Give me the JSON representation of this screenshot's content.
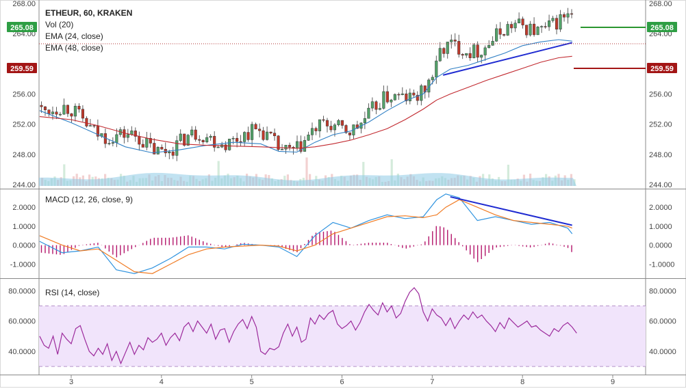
{
  "header": {
    "symbol": "ETHEUR, 60, KRAKEN",
    "vol": "Vol (20)",
    "ema24": "EMA (24, close)",
    "ema48": "EMA (48, close)"
  },
  "macd_title": "MACD (12, 26, close, 9)",
  "rsi_title": "RSI (14, close)",
  "price_badges": {
    "green": {
      "value": "265.08",
      "color": "#2e9e44"
    },
    "red": {
      "value": "259.59",
      "color": "#a31515"
    }
  },
  "colors": {
    "up": "#53a36a",
    "down": "#c0392b",
    "ema24": "#2f7fc4",
    "ema48": "#c1272d",
    "trend": "#1f2bd1",
    "macd": "#2f93df",
    "signal": "#f07b23",
    "histogram": "#b3146a",
    "rsi": "#9c2a9c",
    "rsi_band": "#f1e4fb",
    "volume": "#8ecae6"
  },
  "chart_data": [
    {
      "type": "candlestick",
      "title": "ETHEUR, 60, KRAKEN",
      "ylim": [
        244,
        268
      ],
      "y_ticks": [
        "268.00",
        "264.00",
        "256.00",
        "252.00",
        "248.00",
        "244.00"
      ],
      "x_ticks": [
        "3",
        "4",
        "5",
        "6",
        "7",
        "8",
        "9"
      ],
      "x_days": [
        2.65,
        8.6
      ],
      "series": [
        {
          "name": "EMA (24, close)",
          "x": [
            2.65,
            3.0,
            3.3,
            3.6,
            3.9,
            4.2,
            4.5,
            4.8,
            5.1,
            5.3,
            5.5,
            5.7,
            5.9,
            6.1,
            6.3,
            6.5,
            6.7,
            6.9,
            7.05,
            7.2,
            7.4,
            7.6,
            7.8,
            8.0,
            8.2,
            8.4,
            8.55
          ],
          "values": [
            253.8,
            252.2,
            250.6,
            249.0,
            248.2,
            248.6,
            249.2,
            249.6,
            249.4,
            248.4,
            248.3,
            249.6,
            250.6,
            251.1,
            252.3,
            253.8,
            255.1,
            256.0,
            258.2,
            259.3,
            259.8,
            260.6,
            261.4,
            262.4,
            262.9,
            263.2,
            263.0
          ]
        },
        {
          "name": "EMA (48, close)",
          "x": [
            2.65,
            3.0,
            3.3,
            3.6,
            3.9,
            4.2,
            4.5,
            4.8,
            5.1,
            5.3,
            5.5,
            5.7,
            5.9,
            6.1,
            6.3,
            6.5,
            6.7,
            6.9,
            7.05,
            7.2,
            7.4,
            7.6,
            7.8,
            8.0,
            8.2,
            8.4,
            8.55
          ],
          "values": [
            253.0,
            252.6,
            251.8,
            250.8,
            250.0,
            249.4,
            249.2,
            249.1,
            249.0,
            248.9,
            248.8,
            249.0,
            249.4,
            249.9,
            250.6,
            251.4,
            252.6,
            254.0,
            255.2,
            256.0,
            256.9,
            257.8,
            258.6,
            259.4,
            260.2,
            260.8,
            261.0
          ]
        }
      ],
      "trendlines": [
        {
          "x": [
            7.12,
            8.55
          ],
          "values": [
            258.5,
            262.8
          ]
        }
      ],
      "volume": {
        "label": "Vol (20)"
      },
      "badges": [
        "265.08",
        "259.59"
      ]
    },
    {
      "type": "line",
      "title": "MACD (12, 26, close, 9)",
      "ylim": [
        -1.6,
        2.8
      ],
      "y_ticks": [
        "2.0000",
        "1.0000",
        "0.0000",
        "-1.0000"
      ],
      "series": [
        {
          "name": "MACD",
          "x": [
            2.65,
            2.9,
            3.1,
            3.3,
            3.5,
            3.7,
            3.9,
            4.1,
            4.3,
            4.5,
            4.7,
            4.9,
            5.1,
            5.3,
            5.5,
            5.7,
            5.9,
            6.1,
            6.3,
            6.5,
            6.7,
            6.9,
            7.05,
            7.15,
            7.3,
            7.5,
            7.7,
            7.9,
            8.1,
            8.3,
            8.5,
            8.55
          ],
          "values": [
            0.2,
            -0.4,
            -0.3,
            -0.1,
            -1.3,
            -1.5,
            -1.2,
            -0.7,
            -0.1,
            -0.1,
            -0.2,
            0.05,
            0.0,
            -0.1,
            -0.6,
            0.5,
            1.2,
            0.9,
            1.3,
            1.6,
            1.4,
            1.5,
            2.4,
            2.7,
            2.5,
            1.3,
            1.5,
            1.3,
            1.1,
            1.2,
            0.9,
            0.6
          ]
        },
        {
          "name": "Signal",
          "x": [
            2.65,
            2.9,
            3.1,
            3.3,
            3.5,
            3.7,
            3.9,
            4.1,
            4.3,
            4.5,
            4.7,
            4.9,
            5.1,
            5.3,
            5.5,
            5.7,
            5.9,
            6.1,
            6.3,
            6.5,
            6.7,
            6.9,
            7.05,
            7.15,
            7.3,
            7.5,
            7.7,
            7.9,
            8.1,
            8.3,
            8.5,
            8.55
          ],
          "values": [
            0.5,
            0.0,
            -0.3,
            -0.2,
            -0.8,
            -1.4,
            -1.5,
            -1.0,
            -0.5,
            -0.2,
            -0.1,
            -0.05,
            0.0,
            -0.05,
            -0.3,
            0.0,
            0.6,
            0.9,
            1.2,
            1.5,
            1.55,
            1.45,
            1.6,
            2.0,
            2.4,
            2.0,
            1.6,
            1.3,
            1.2,
            1.1,
            1.0,
            0.9
          ]
        }
      ],
      "trendlines": [
        {
          "x": [
            7.2,
            8.55
          ],
          "values": [
            2.55,
            1.05
          ]
        }
      ]
    },
    {
      "type": "line",
      "title": "RSI (14, close)",
      "ylim": [
        26,
        86
      ],
      "y_ticks": [
        "80.0000",
        "60.0000",
        "40.0000"
      ],
      "band": [
        30,
        70
      ],
      "series": [
        {
          "name": "RSI",
          "x": [
            2.65,
            2.7,
            2.75,
            2.8,
            2.85,
            2.9,
            2.95,
            3.0,
            3.05,
            3.1,
            3.15,
            3.2,
            3.25,
            3.3,
            3.35,
            3.4,
            3.45,
            3.5,
            3.55,
            3.6,
            3.65,
            3.7,
            3.75,
            3.8,
            3.85,
            3.9,
            3.95,
            4.0,
            4.05,
            4.1,
            4.15,
            4.2,
            4.25,
            4.3,
            4.35,
            4.4,
            4.45,
            4.5,
            4.55,
            4.6,
            4.65,
            4.7,
            4.75,
            4.8,
            4.85,
            4.9,
            4.95,
            5.0,
            5.05,
            5.1,
            5.15,
            5.2,
            5.25,
            5.3,
            5.35,
            5.4,
            5.45,
            5.5,
            5.55,
            5.6,
            5.65,
            5.7,
            5.75,
            5.8,
            5.85,
            5.9,
            5.95,
            6.0,
            6.05,
            6.1,
            6.15,
            6.2,
            6.25,
            6.3,
            6.35,
            6.4,
            6.45,
            6.5,
            6.55,
            6.6,
            6.65,
            6.7,
            6.75,
            6.8,
            6.85,
            6.9,
            6.95,
            7.0,
            7.05,
            7.1,
            7.15,
            7.2,
            7.25,
            7.3,
            7.35,
            7.4,
            7.45,
            7.5,
            7.55,
            7.6,
            7.65,
            7.7,
            7.75,
            7.8,
            7.85,
            7.9,
            7.95,
            8.0,
            8.05,
            8.1,
            8.15,
            8.2,
            8.25,
            8.3,
            8.35,
            8.4,
            8.45,
            8.5,
            8.55,
            8.6
          ],
          "values": [
            50,
            44,
            42,
            50,
            38,
            52,
            48,
            45,
            55,
            57,
            48,
            40,
            37,
            42,
            38,
            45,
            34,
            40,
            32,
            39,
            46,
            38,
            44,
            41,
            49,
            46,
            48,
            52,
            44,
            49,
            52,
            47,
            56,
            59,
            53,
            60,
            56,
            52,
            58,
            48,
            54,
            55,
            46,
            53,
            58,
            61,
            55,
            63,
            56,
            40,
            38,
            42,
            41,
            43,
            52,
            58,
            50,
            56,
            46,
            48,
            62,
            58,
            64,
            61,
            65,
            67,
            58,
            55,
            57,
            60,
            54,
            59,
            66,
            71,
            67,
            64,
            72,
            66,
            70,
            62,
            65,
            73,
            79,
            82,
            78,
            66,
            60,
            68,
            64,
            62,
            57,
            62,
            55,
            60,
            64,
            61,
            66,
            62,
            64,
            60,
            57,
            53,
            59,
            55,
            62,
            59,
            56,
            58,
            60,
            56,
            57,
            54,
            52,
            50,
            55,
            53,
            57,
            59,
            56,
            52
          ]
        }
      ]
    }
  ]
}
